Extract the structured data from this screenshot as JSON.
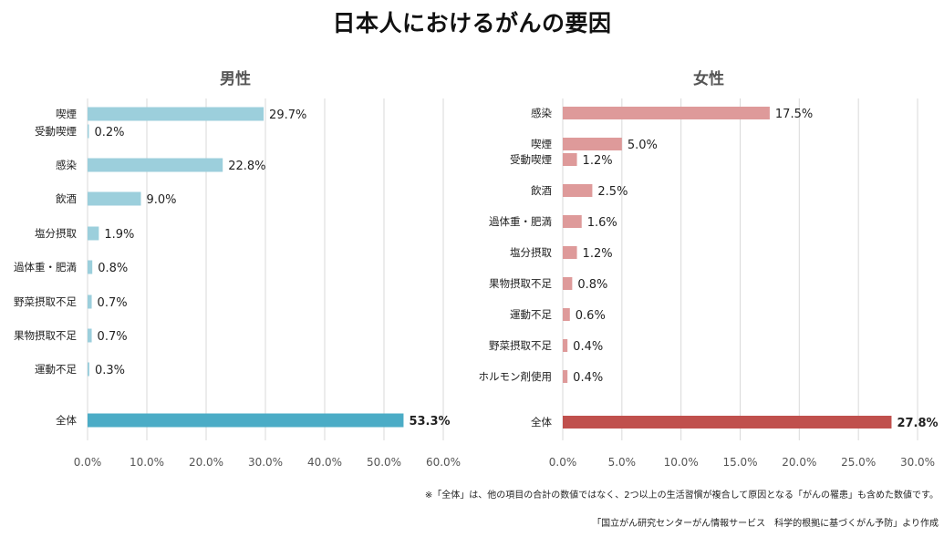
{
  "page": {
    "title": "日本人におけるがんの要因"
  },
  "chart_data": [
    {
      "type": "bar",
      "orientation": "horizontal",
      "title": "男性",
      "categories": [
        "喫煙",
        "受動喫煙",
        "感染",
        "飲酒",
        "塩分摂取",
        "過体重・肥満",
        "野菜摂取不足",
        "果物摂取不足",
        "運動不足",
        "全体"
      ],
      "values": [
        29.7,
        0.2,
        22.8,
        9.0,
        1.9,
        0.8,
        0.7,
        0.7,
        0.3,
        53.3
      ],
      "value_labels": [
        "29.7%",
        "0.2%",
        "22.8%",
        "9.0%",
        "1.9%",
        "0.8%",
        "0.7%",
        "0.7%",
        "0.3%",
        "53.3%"
      ],
      "xlim": [
        0,
        60
      ],
      "xticks": [
        "0.0%",
        "10.0%",
        "20.0%",
        "30.0%",
        "40.0%",
        "50.0%",
        "60.0%"
      ],
      "bar_color": "#9ccfdc",
      "total_color": "#4bacc6",
      "grid": true
    },
    {
      "type": "bar",
      "orientation": "horizontal",
      "title": "女性",
      "categories": [
        "感染",
        "喫煙",
        "受動喫煙",
        "飲酒",
        "過体重・肥満",
        "塩分摂取",
        "果物摂取不足",
        "運動不足",
        "野菜摂取不足",
        "ホルモン剤使用",
        "全体"
      ],
      "values": [
        17.5,
        5.0,
        1.2,
        2.5,
        1.6,
        1.2,
        0.8,
        0.6,
        0.4,
        0.4,
        27.8
      ],
      "value_labels": [
        "17.5%",
        "5.0%",
        "1.2%",
        "2.5%",
        "1.6%",
        "1.2%",
        "0.8%",
        "0.6%",
        "0.4%",
        "0.4%",
        "27.8%"
      ],
      "xlim": [
        0,
        30
      ],
      "xticks": [
        "0.0%",
        "5.0%",
        "10.0%",
        "15.0%",
        "20.0%",
        "25.0%",
        "30.0%"
      ],
      "bar_color": "#de9a9a",
      "total_color": "#c0504d",
      "grid": true
    }
  ],
  "footer": {
    "note": "※「全体」は、他の項目の合計の数値ではなく、2つ以上の生活習慣が複合して原因となる「がんの罹患」も含めた数値です。",
    "source": "「国立がん研究センターがん情報サービス　科学的根拠に基づくがん予防」より作成"
  }
}
